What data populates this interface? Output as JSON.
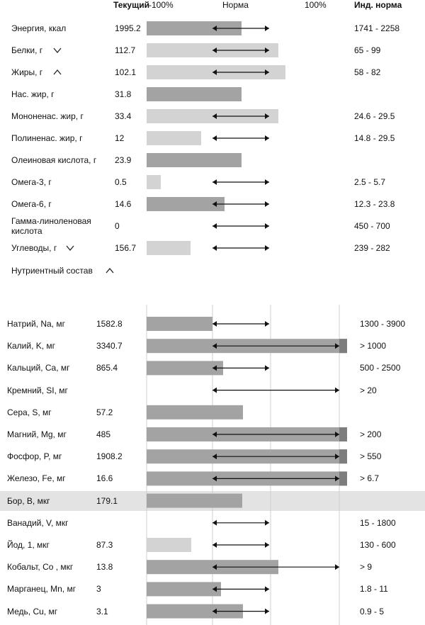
{
  "header": {
    "current": "Текущий",
    "minus100": "-100%",
    "norm": "Норма",
    "plus100": "100%",
    "ind_norm": "Инд. норма"
  },
  "top_rows": [
    {
      "name": "Энергия, ккал",
      "value": "1995.2",
      "norm": "1741 - 2258"
    },
    {
      "name": "Белки, г",
      "value": "112.7",
      "norm": "65 - 99"
    },
    {
      "name": "Жиры, г",
      "value": "102.1",
      "norm": "58 - 82"
    },
    {
      "name": "Нас. жир, г",
      "value": "31.8"
    },
    {
      "name": "Мононенас. жир, г",
      "value": "33.4",
      "norm": "24.6 - 29.5"
    },
    {
      "name": "Полиненас. жир, г",
      "value": "12",
      "norm": "14.8 - 29.5"
    },
    {
      "name": "Олеиновая кислота, г",
      "value": "23.9"
    },
    {
      "name": "Омега-3, г",
      "value": "0.5",
      "norm": "2.5 - 5.7"
    },
    {
      "name": "Омега-6, г",
      "value": "14.6",
      "norm": "12.3 - 23.8"
    },
    {
      "name": "Гамма-линоленовая кислота",
      "value": "0",
      "norm": "450 - 700"
    },
    {
      "name": "Углеводы, г",
      "value": "156.7",
      "norm": "239 - 282"
    }
  ],
  "section_toggle": "Нутриентный состав",
  "bottom_rows": [
    {
      "name": "Натрий, Na, мг",
      "value": "1582.8",
      "norm": "1300 - 3900"
    },
    {
      "name": "Калий, K, мг",
      "value": "3340.7",
      "norm": "> 1000"
    },
    {
      "name": "Кальций, Ca, мг",
      "value": "865.4",
      "norm": "500 - 2500"
    },
    {
      "name": "Кремний, SI, мг",
      "norm": "> 20"
    },
    {
      "name": "Сера, S, мг",
      "value": "57.2"
    },
    {
      "name": "Магний, Mg, мг",
      "value": "485",
      "norm": "> 200"
    },
    {
      "name": "Фосфор, P, мг",
      "value": "1908.2",
      "norm": "> 550"
    },
    {
      "name": "Железо, Fe, мг",
      "value": "16.6",
      "norm": "> 6.7"
    },
    {
      "name": "Бор, B, мкг",
      "value": "179.1"
    },
    {
      "name": "Ванадий, V, мкг",
      "norm": "15 - 1800"
    },
    {
      "name": "Йод, 1, мкг",
      "value": "87.3",
      "norm": "130 - 600"
    },
    {
      "name": "Кобальт, Co , мкг",
      "value": "13.8",
      "norm": "> 9"
    },
    {
      "name": "Марганец, Mn, мг",
      "value": "3",
      "norm": "1.8 - 11"
    },
    {
      "name": "Медь, Cu, мг",
      "value": "3.1",
      "norm": "0.9 - 5"
    }
  ]
}
